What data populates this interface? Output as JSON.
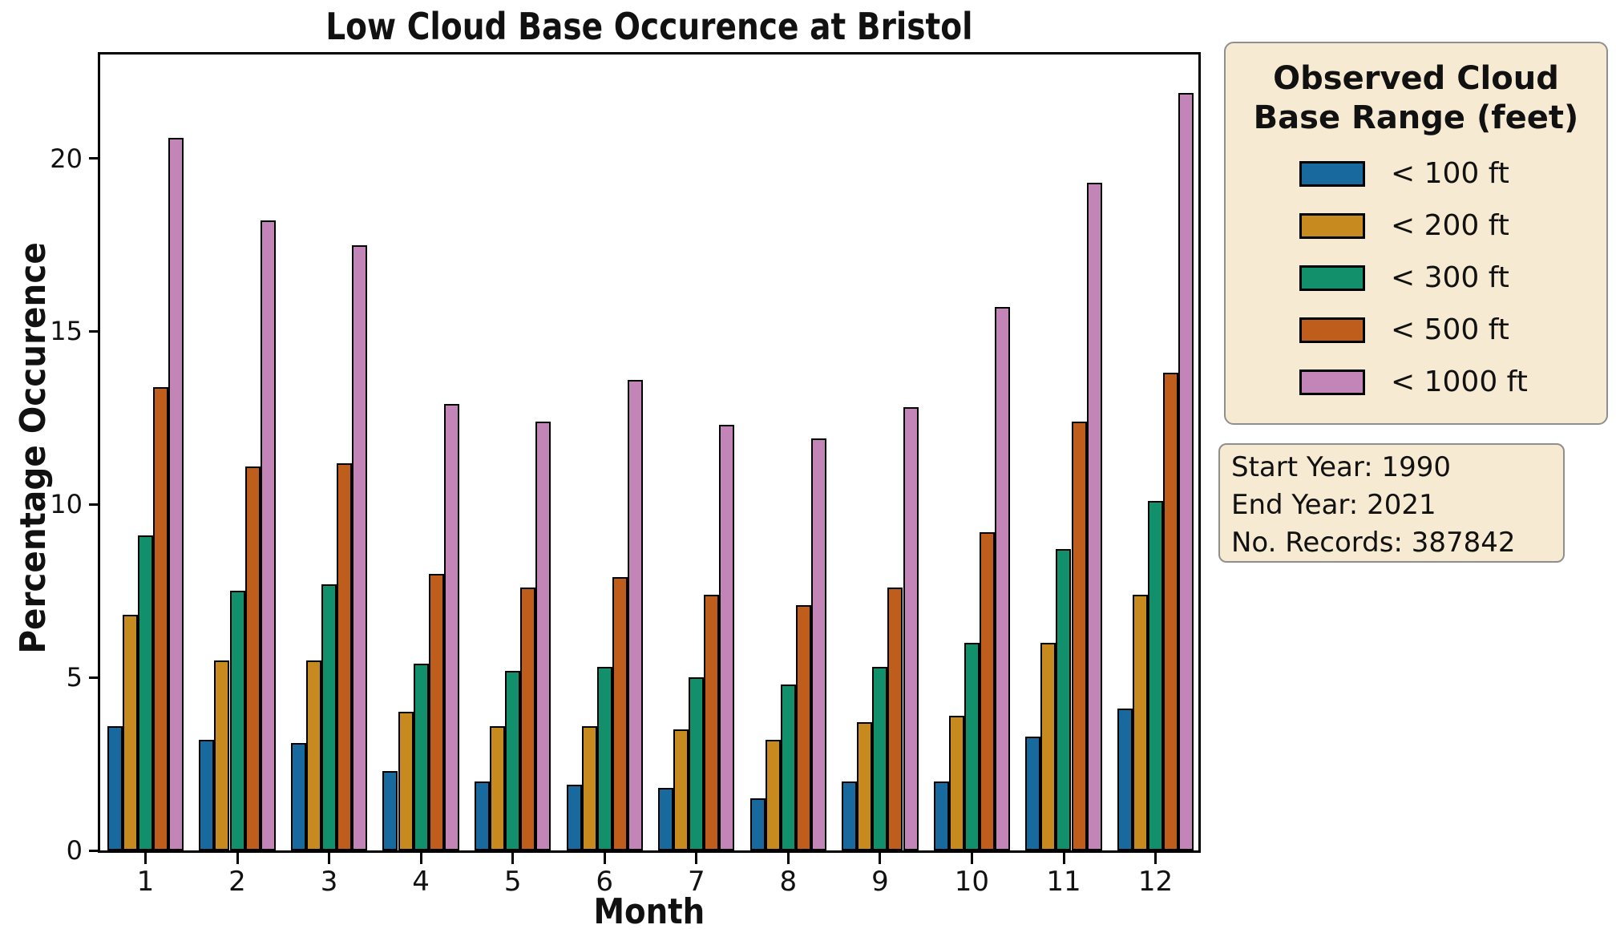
{
  "title": "Low Cloud Base Occurence at Bristol",
  "axes": {
    "xlabel": "Month",
    "ylabel": "Percentage Occurence",
    "y_ticks": [
      "0",
      "5",
      "10",
      "15",
      "20"
    ],
    "y_tick_values": [
      0,
      5,
      10,
      15,
      20
    ]
  },
  "chart_data": {
    "type": "bar",
    "title": "Low Cloud Base Occurence at Bristol",
    "xlabel": "Month",
    "ylabel": "Percentage Occurence",
    "categories": [
      "1",
      "2",
      "3",
      "4",
      "5",
      "6",
      "7",
      "8",
      "9",
      "10",
      "11",
      "12"
    ],
    "ylim": [
      0,
      23
    ],
    "grid": false,
    "legend_position": "outside-right-top",
    "bar_edge_color": "#000000",
    "series": [
      {
        "name": "< 100 ft",
        "color": "#17699e",
        "values": [
          3.6,
          3.2,
          3.1,
          2.3,
          2.0,
          1.9,
          1.8,
          1.5,
          2.0,
          2.0,
          3.3,
          4.1
        ]
      },
      {
        "name": "< 200 ft",
        "color": "#c78a1e",
        "values": [
          6.8,
          5.5,
          5.5,
          4.0,
          3.6,
          3.6,
          3.5,
          3.2,
          3.7,
          3.9,
          6.0,
          7.4
        ]
      },
      {
        "name": "< 300 ft",
        "color": "#12906b",
        "values": [
          9.1,
          7.5,
          7.7,
          5.4,
          5.2,
          5.3,
          5.0,
          4.8,
          5.3,
          6.0,
          8.7,
          10.1
        ]
      },
      {
        "name": "< 500 ft",
        "color": "#bf5e1c",
        "values": [
          13.4,
          11.1,
          11.2,
          8.0,
          7.6,
          7.9,
          7.4,
          7.1,
          7.6,
          9.2,
          12.4,
          13.8
        ]
      },
      {
        "name": "< 1000 ft",
        "color": "#c384b8",
        "values": [
          20.6,
          18.2,
          17.5,
          12.9,
          12.4,
          13.6,
          12.3,
          11.9,
          12.8,
          15.7,
          19.3,
          21.9
        ]
      }
    ]
  },
  "legend": {
    "title_lines": [
      "Observed Cloud",
      "Base Range (feet)"
    ]
  },
  "info_box": {
    "lines": [
      "Start Year: 1990",
      "End Year: 2021",
      "No. Records: 387842"
    ]
  },
  "colors": {
    "box_background": "#f6ebd2",
    "box_border": "#8f8f8f",
    "axis": "#000000",
    "text": "#111111"
  }
}
